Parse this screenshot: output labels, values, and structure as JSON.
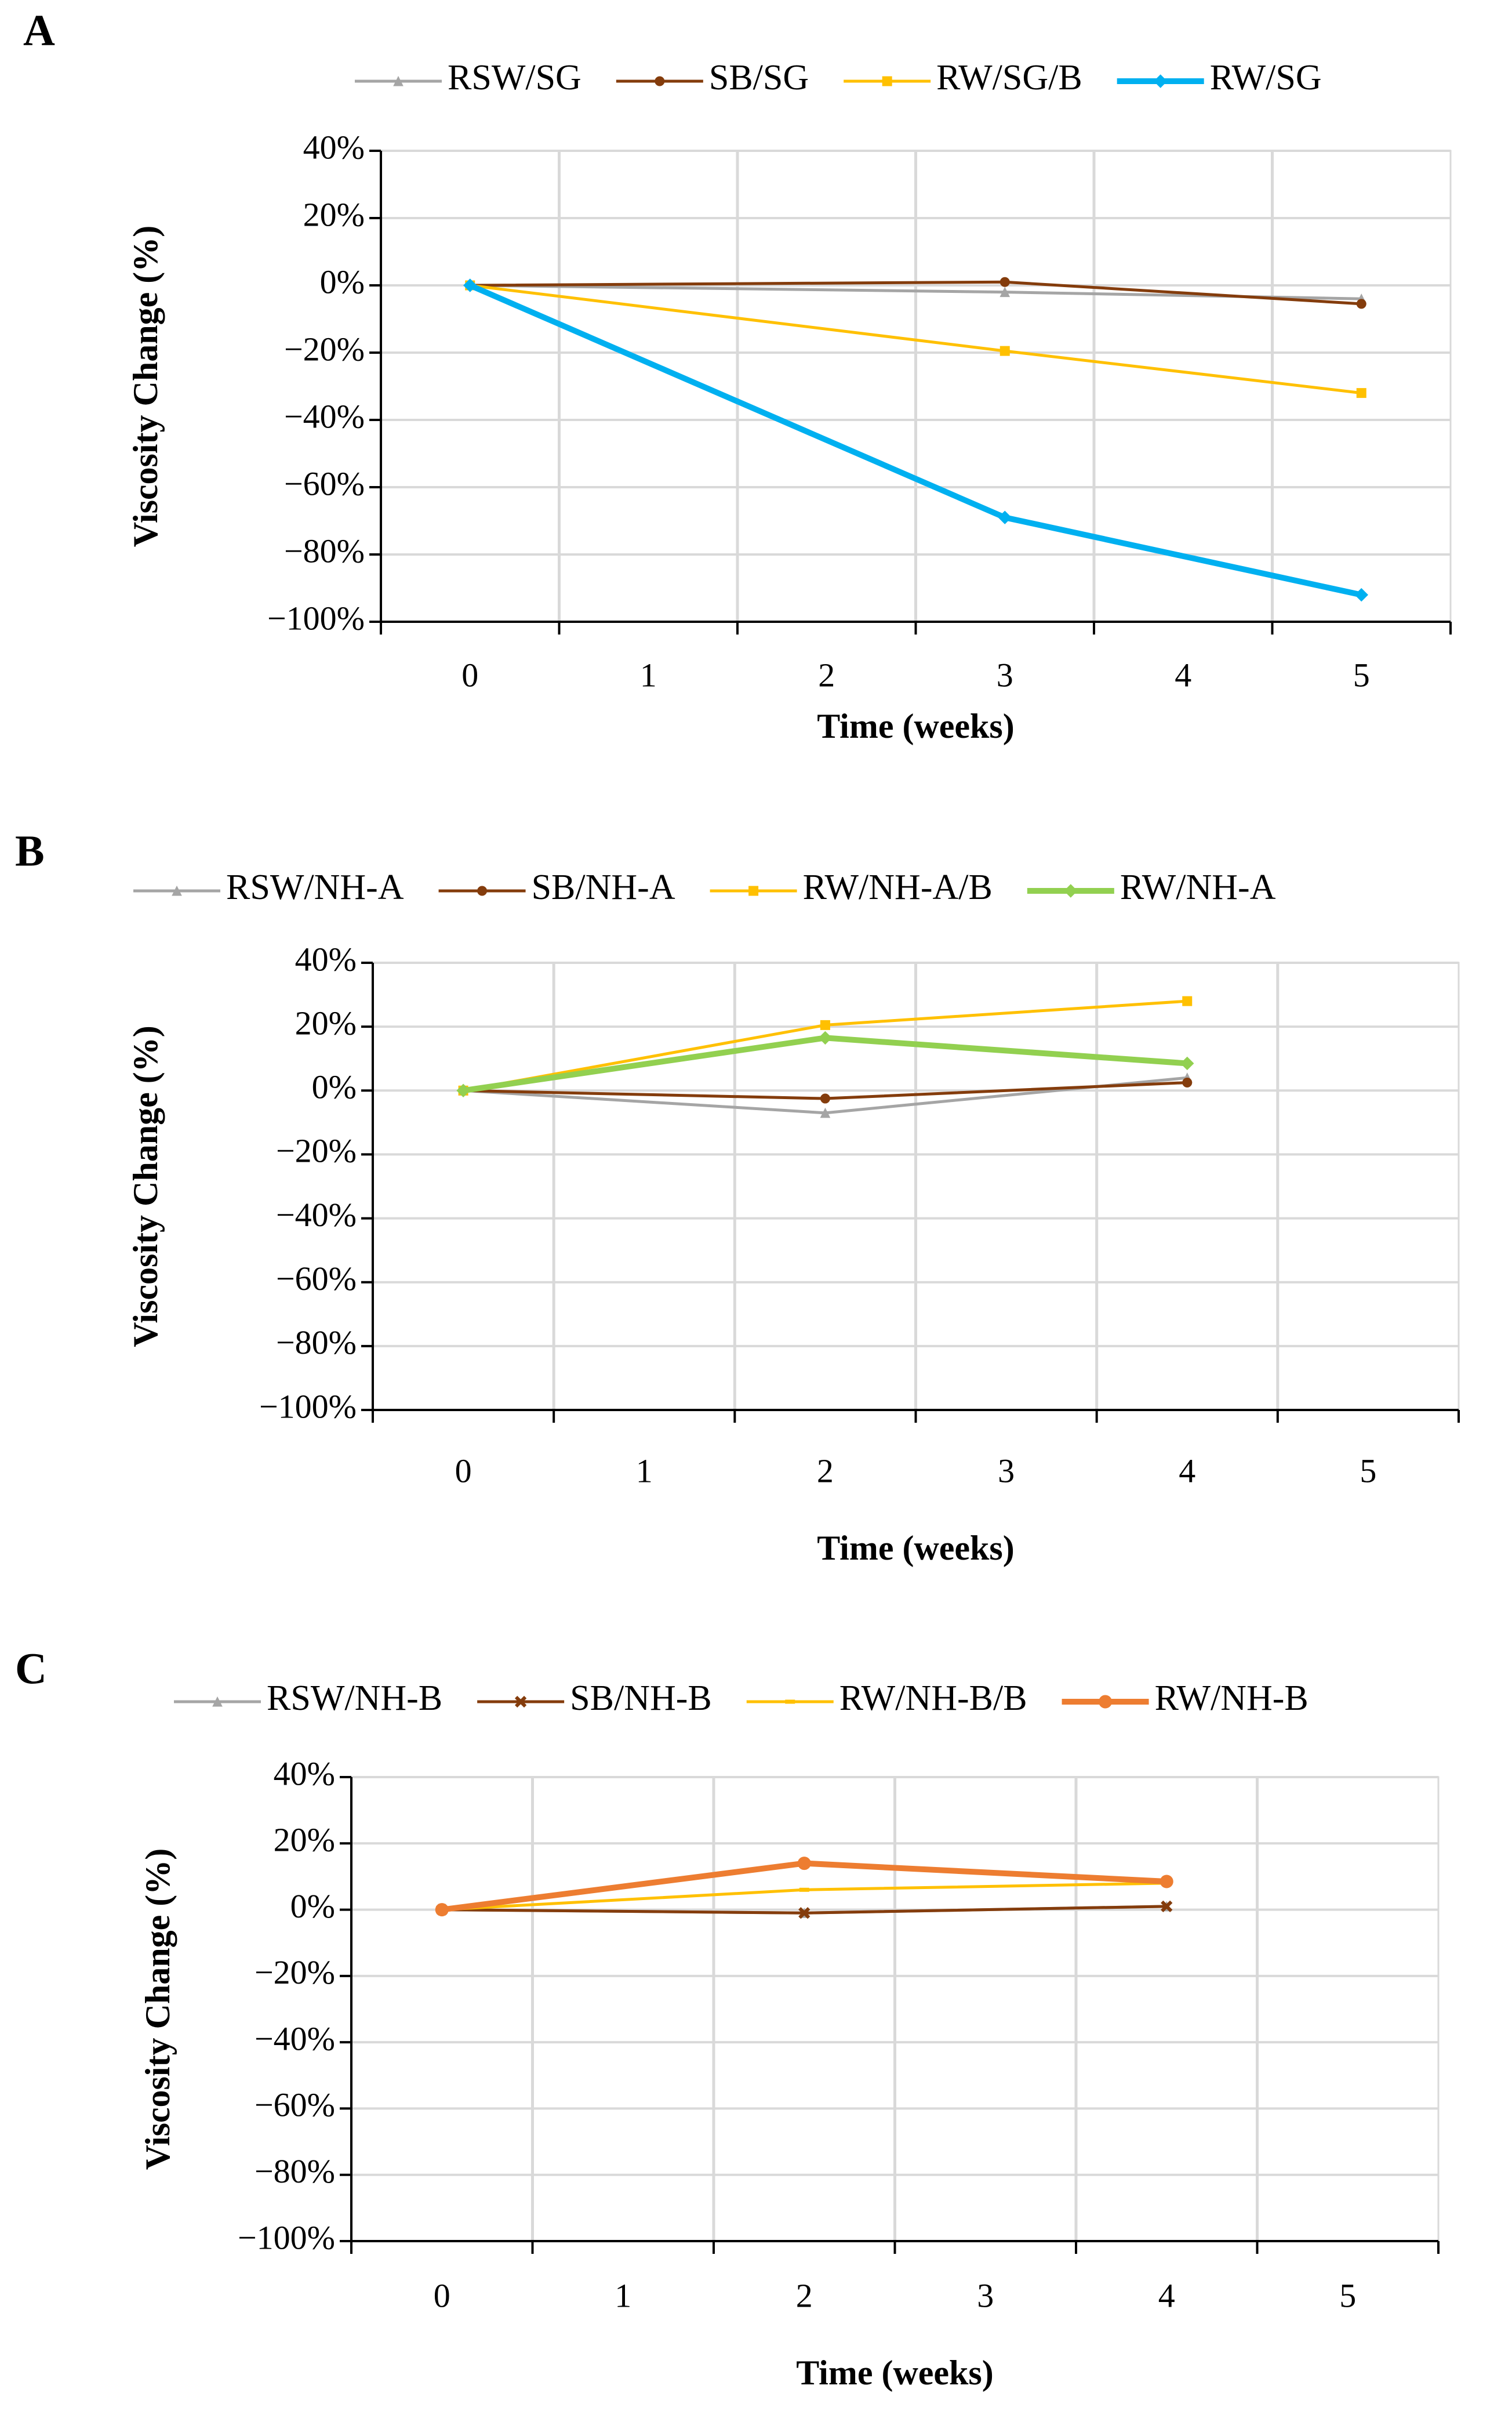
{
  "chart_data": [
    {
      "type": "line",
      "panel": "A",
      "x_label": "Time (weeks)",
      "y_label": "Viscosity Change (%)",
      "xlim": [
        -0.5,
        5.5
      ],
      "xticks": [
        0,
        1,
        2,
        3,
        4,
        5
      ],
      "ylim": [
        -100,
        40
      ],
      "yticks": [
        {
          "value": -100,
          "label": "−100%"
        },
        {
          "value": -80,
          "label": "−80%"
        },
        {
          "value": -60,
          "label": "−60%"
        },
        {
          "value": -40,
          "label": "−40%"
        },
        {
          "value": -20,
          "label": "−20%"
        },
        {
          "value": 0,
          "label": "0%"
        },
        {
          "value": 20,
          "label": "20%"
        },
        {
          "value": 40,
          "label": "40%"
        }
      ],
      "grid": true,
      "x": [
        0,
        3,
        5
      ],
      "series": [
        {
          "name": "RSW/SG",
          "color": "#a5a5a5",
          "marker": "triangle",
          "values": [
            0,
            -2,
            -4
          ]
        },
        {
          "name": "SB/SG",
          "color": "#843c0c",
          "marker": "circle",
          "values": [
            0,
            1,
            -5.5
          ]
        },
        {
          "name": "RW/SG/B",
          "color": "#ffc000",
          "marker": "square",
          "values": [
            0,
            -19.5,
            -32
          ]
        },
        {
          "name": "RW/SG",
          "color": "#00b0f0",
          "marker": "diamond",
          "values": [
            0,
            -69,
            -92
          ]
        }
      ]
    },
    {
      "type": "line",
      "panel": "B",
      "x_label": "Time (weeks)",
      "y_label": "Viscosity Change (%)",
      "xlim": [
        -0.5,
        5.5
      ],
      "xticks": [
        0,
        1,
        2,
        3,
        4,
        5
      ],
      "ylim": [
        -100,
        40
      ],
      "yticks": [
        {
          "value": -100,
          "label": "−100%"
        },
        {
          "value": -80,
          "label": "−80%"
        },
        {
          "value": -60,
          "label": "−60%"
        },
        {
          "value": -40,
          "label": "−40%"
        },
        {
          "value": -20,
          "label": "−20%"
        },
        {
          "value": 0,
          "label": "0%"
        },
        {
          "value": 20,
          "label": "20%"
        },
        {
          "value": 40,
          "label": "40%"
        }
      ],
      "grid": true,
      "x": [
        0,
        2,
        4
      ],
      "series": [
        {
          "name": "RSW/NH-A",
          "color": "#a5a5a5",
          "marker": "triangle",
          "values": [
            0,
            -7,
            4
          ]
        },
        {
          "name": "SB/NH-A",
          "color": "#843c0c",
          "marker": "circle",
          "values": [
            0,
            -2.5,
            2.5
          ]
        },
        {
          "name": "RW/NH-A/B",
          "color": "#ffc000",
          "marker": "square",
          "values": [
            0,
            20.5,
            28
          ]
        },
        {
          "name": "RW/NH-A",
          "color": "#92d050",
          "marker": "diamond",
          "values": [
            0,
            16.5,
            8.5
          ]
        }
      ]
    },
    {
      "type": "line",
      "panel": "C",
      "x_label": "Time (weeks)",
      "y_label": "Viscosity Change (%)",
      "xlim": [
        -0.5,
        5.5
      ],
      "xticks": [
        0,
        1,
        2,
        3,
        4,
        5
      ],
      "ylim": [
        -100,
        40
      ],
      "yticks": [
        {
          "value": -100,
          "label": "−100%"
        },
        {
          "value": -80,
          "label": "−80%"
        },
        {
          "value": -60,
          "label": "−60%"
        },
        {
          "value": -40,
          "label": "−40%"
        },
        {
          "value": -20,
          "label": "−20%"
        },
        {
          "value": 0,
          "label": "0%"
        },
        {
          "value": 20,
          "label": "20%"
        },
        {
          "value": 40,
          "label": "40%"
        }
      ],
      "grid": true,
      "x": [
        0,
        2,
        4
      ],
      "series": [
        {
          "name": "RSW/NH-B",
          "color": "#a5a5a5",
          "marker": "triangle",
          "values": [
            0,
            -1,
            1
          ]
        },
        {
          "name": "SB/NH-B",
          "color": "#843c0c",
          "marker": "cross",
          "values": [
            0,
            -1,
            1
          ]
        },
        {
          "name": "RW/NH-B/B",
          "color": "#ffc000",
          "marker": "dash",
          "values": [
            0,
            6,
            8
          ]
        },
        {
          "name": "RW/NH-B",
          "color": "#ed7d31",
          "marker": "circle",
          "values": [
            0,
            14,
            8.5
          ]
        }
      ]
    }
  ]
}
